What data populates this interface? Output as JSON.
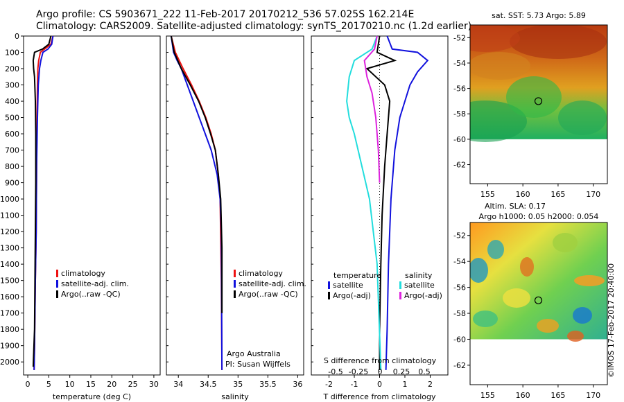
{
  "header": {
    "line1": "Argo profile: CS 5903671_222 11-Feb-2017 20170212_536 57.025S 162.214E",
    "line2": "Climatology: CARS2009. Satellite-adjusted climatology: synTS_20170210.nc (1.2d earlier)"
  },
  "watermark": "©IMOS 17-Feb-2017 20:40:00",
  "colors": {
    "climatology": "#ee1111",
    "satellite": "#1111dd",
    "argo": "#000000",
    "cyan": "#22dddd",
    "magenta": "#dd22dd"
  },
  "chart_data": [
    {
      "type": "line",
      "xlabel": "temperature (deg C)",
      "ylabel": "",
      "xlim": [
        -1,
        31.5
      ],
      "ylim": [
        2080,
        0
      ],
      "xticks": [
        0,
        5,
        10,
        15,
        20,
        25,
        30
      ],
      "yticks": [
        0,
        100,
        200,
        300,
        400,
        500,
        600,
        700,
        800,
        900,
        1000,
        1100,
        1200,
        1300,
        1400,
        1500,
        1600,
        1700,
        1800,
        1900,
        2000
      ],
      "legend": [
        "climatology",
        "satellite-adj. clim.",
        "Argo(..raw -QC)"
      ],
      "series": [
        {
          "name": "climatology",
          "color": "climatology",
          "x": [
            6,
            5.5,
            4,
            3,
            2.6,
            2.4,
            2.3,
            2.2,
            2.1,
            2.0,
            1.8,
            1.6,
            1.5
          ],
          "y": [
            0,
            50,
            80,
            100,
            150,
            200,
            300,
            500,
            800,
            1200,
            1500,
            1900,
            2050
          ]
        },
        {
          "name": "satellite-adj. clim.",
          "color": "satellite",
          "x": [
            6,
            5.7,
            4.8,
            3.6,
            3.1,
            2.8,
            2.5,
            2.3,
            2.1,
            2.0,
            1.8,
            1.6,
            1.5
          ],
          "y": [
            0,
            50,
            80,
            100,
            150,
            200,
            300,
            500,
            800,
            1200,
            1500,
            1900,
            2050
          ]
        },
        {
          "name": "Argo(..raw -QC)",
          "color": "argo",
          "x": [
            5.5,
            5.0,
            3.5,
            1.6,
            1.3,
            1.4,
            1.6,
            1.8,
            1.9,
            1.9,
            1.8,
            1.7,
            1.6,
            1.3
          ],
          "y": [
            0,
            50,
            80,
            100,
            150,
            200,
            250,
            400,
            600,
            900,
            1200,
            1500,
            1800,
            2030
          ]
        }
      ]
    },
    {
      "type": "line",
      "xlabel": "salinity",
      "ylabel": "",
      "xlim": [
        33.8,
        36.1
      ],
      "ylim": [
        2080,
        0
      ],
      "xticks": [
        34,
        34.5,
        35,
        35.5,
        36
      ],
      "legend": [
        "climatology",
        "satellite-adj. clim.",
        "Argo(..raw -QC)"
      ],
      "annotations": [
        "Argo Australia",
        "PI: Susan Wijffels"
      ],
      "series": [
        {
          "name": "climatology",
          "color": "climatology",
          "x": [
            33.88,
            33.95,
            34.08,
            34.22,
            34.35,
            34.46,
            34.55,
            34.62,
            34.67,
            34.7,
            34.72,
            34.73
          ],
          "y": [
            0,
            100,
            200,
            300,
            400,
            500,
            600,
            700,
            850,
            1000,
            1500,
            2050
          ]
        },
        {
          "name": "satellite-adj. clim.",
          "color": "satellite",
          "x": [
            33.88,
            33.92,
            33.98,
            34.05,
            34.15,
            34.25,
            34.35,
            34.45,
            34.55,
            34.65,
            34.7,
            34.72,
            34.73
          ],
          "y": [
            0,
            100,
            150,
            200,
            300,
            400,
            500,
            600,
            700,
            850,
            1000,
            1200,
            2050
          ]
        },
        {
          "name": "Argo(..raw -QC)",
          "color": "argo",
          "x": [
            33.88,
            33.93,
            34.05,
            34.2,
            34.34,
            34.45,
            34.54,
            34.62,
            34.67,
            34.71,
            34.73,
            34.73
          ],
          "y": [
            0,
            100,
            200,
            300,
            400,
            500,
            600,
            700,
            850,
            1000,
            1300,
            1700
          ]
        }
      ]
    },
    {
      "type": "line",
      "xlabel": "T difference from climatology",
      "xlabel2": "S difference from climatology",
      "xlim": [
        -2.7,
        2.7
      ],
      "ylim": [
        2080,
        0
      ],
      "xticks": [
        -2,
        -1,
        0,
        1,
        2
      ],
      "sticks": [
        "-0.5",
        "-0.25",
        "0",
        "0.25",
        "0.5"
      ],
      "legend_titles": [
        "temperature",
        "salinity"
      ],
      "legend": [
        "satellite",
        "Argo(-adj)",
        "satellite",
        "Argo(-adj)"
      ],
      "series": [
        {
          "name": "satellite",
          "color": "satellite",
          "x": [
            0.3,
            0.5,
            1.5,
            1.9,
            1.5,
            1.2,
            1.0,
            0.8,
            0.6,
            0.45,
            0.35,
            0.3,
            0.25
          ],
          "y": [
            0,
            80,
            100,
            150,
            220,
            300,
            400,
            500,
            700,
            1000,
            1400,
            1800,
            2050
          ]
        },
        {
          "name": "Argo(-adj)",
          "color": "argo",
          "x": [
            0,
            -0.1,
            0.6,
            -0.5,
            0.2,
            0.4,
            0.3,
            0.2,
            0.1,
            0.05,
            0.0,
            0.0
          ],
          "y": [
            0,
            100,
            150,
            200,
            300,
            400,
            600,
            800,
            1100,
            1400,
            1800,
            2050
          ]
        },
        {
          "name": "satellite",
          "color": "cyan",
          "x": [
            -0.1,
            -0.3,
            -1.0,
            -1.2,
            -1.3,
            -1.2,
            -1.0,
            -0.7,
            -0.4,
            -0.1,
            0.05
          ],
          "y": [
            0,
            80,
            150,
            250,
            400,
            500,
            600,
            800,
            1000,
            1400,
            2050
          ]
        },
        {
          "name": "Argo(-adj)",
          "color": "magenta",
          "x": [
            -0.1,
            -0.2,
            -0.6,
            -0.5,
            -0.3,
            -0.15,
            -0.05,
            0.0
          ],
          "y": [
            0,
            80,
            150,
            250,
            350,
            500,
            700,
            900
          ]
        }
      ]
    },
    {
      "type": "heatmap",
      "title": "sat. SST: 5.73 Argo: 5.89",
      "xticks": [
        155,
        160,
        165,
        170
      ],
      "yticks": [
        -52,
        -54,
        -56,
        -58,
        -60,
        -62
      ],
      "xlim": [
        152.5,
        172
      ],
      "ylim": [
        -63.5,
        -51
      ],
      "data_bottom": -60,
      "marker": {
        "lon": 162.2,
        "lat": -57.0
      }
    },
    {
      "type": "heatmap",
      "title": "Altim. SLA: 0.17",
      "subtitle": "Argo h1000: 0.05 h2000: 0.054",
      "xticks": [
        155,
        160,
        165,
        170
      ],
      "yticks": [
        -52,
        -54,
        -56,
        -58,
        -60,
        -62
      ],
      "xlim": [
        152.5,
        172
      ],
      "ylim": [
        -63.5,
        -51
      ],
      "data_bottom": -60,
      "marker": {
        "lon": 162.2,
        "lat": -57.0
      }
    }
  ]
}
